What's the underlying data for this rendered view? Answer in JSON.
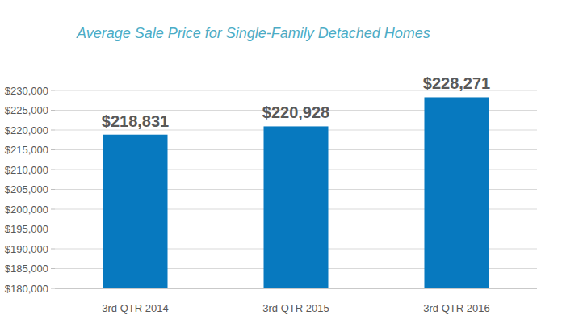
{
  "chart_data": {
    "type": "bar",
    "title": "Average Sale Price for Single-Family Detached Homes",
    "categories": [
      "3rd QTR 2014",
      "3rd QTR 2015",
      "3rd QTR 2016"
    ],
    "values": [
      218831,
      220928,
      228271
    ],
    "value_labels": [
      "$218,831",
      "$220,928",
      "$228,271"
    ],
    "color": "#0779bf",
    "ylim": [
      180000,
      230000
    ],
    "yticks": [
      {
        "value": 180000,
        "label": "$180,000"
      },
      {
        "value": 185000,
        "label": "$185,000"
      },
      {
        "value": 190000,
        "label": "$190,000"
      },
      {
        "value": 195000,
        "label": "$195,000"
      },
      {
        "value": 200000,
        "label": "$200,000"
      },
      {
        "value": 205000,
        "label": "$205,000"
      },
      {
        "value": 210000,
        "label": "$210,000"
      },
      {
        "value": 215000,
        "label": "$215,000"
      },
      {
        "value": 220000,
        "label": "$220,000"
      },
      {
        "value": 225000,
        "label": "$225,000"
      },
      {
        "value": 230000,
        "label": "$230,000"
      }
    ],
    "grid": true,
    "data_labels": true
  }
}
